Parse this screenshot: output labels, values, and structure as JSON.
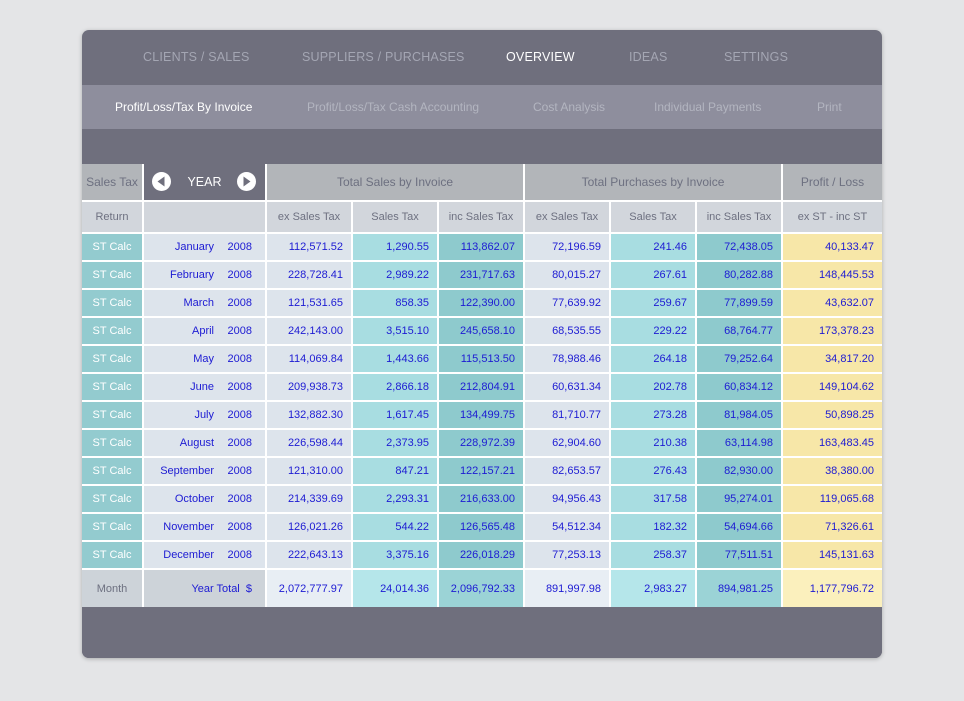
{
  "top_nav": [
    "CLIENTS / SALES",
    "SUPPLIERS / PURCHASES",
    "OVERVIEW",
    "IDEAS",
    "SETTINGS"
  ],
  "sub_nav": [
    "Profit/Loss/Tax By Invoice",
    "Profit/Loss/Tax Cash Accounting",
    "Cost Analysis",
    "Individual Payments",
    "Print"
  ],
  "table": {
    "sales_tax_header": "Sales Tax",
    "year_label": "YEAR",
    "total_sales_header": "Total Sales by Invoice",
    "total_purchases_header": "Total Purchases by Invoice",
    "profit_loss_header": "Profit / Loss",
    "return_label": "Return",
    "sub_headers": [
      "ex Sales Tax",
      "Sales Tax",
      "inc Sales Tax",
      "ex Sales Tax",
      "Sales Tax",
      "inc Sales Tax",
      "ex ST - inc ST"
    ],
    "rows": [
      {
        "action": "ST Calc",
        "month": "January",
        "year": "2008",
        "sales_ex": "112,571.52",
        "sales_tax": "1,290.55",
        "sales_inc": "113,862.07",
        "purch_ex": "72,196.59",
        "purch_tax": "241.46",
        "purch_inc": "72,438.05",
        "profit": "40,133.47"
      },
      {
        "action": "ST Calc",
        "month": "February",
        "year": "2008",
        "sales_ex": "228,728.41",
        "sales_tax": "2,989.22",
        "sales_inc": "231,717.63",
        "purch_ex": "80,015.27",
        "purch_tax": "267.61",
        "purch_inc": "80,282.88",
        "profit": "148,445.53"
      },
      {
        "action": "ST Calc",
        "month": "March",
        "year": "2008",
        "sales_ex": "121,531.65",
        "sales_tax": "858.35",
        "sales_inc": "122,390.00",
        "purch_ex": "77,639.92",
        "purch_tax": "259.67",
        "purch_inc": "77,899.59",
        "profit": "43,632.07"
      },
      {
        "action": "ST Calc",
        "month": "April",
        "year": "2008",
        "sales_ex": "242,143.00",
        "sales_tax": "3,515.10",
        "sales_inc": "245,658.10",
        "purch_ex": "68,535.55",
        "purch_tax": "229.22",
        "purch_inc": "68,764.77",
        "profit": "173,378.23"
      },
      {
        "action": "ST Calc",
        "month": "May",
        "year": "2008",
        "sales_ex": "114,069.84",
        "sales_tax": "1,443.66",
        "sales_inc": "115,513.50",
        "purch_ex": "78,988.46",
        "purch_tax": "264.18",
        "purch_inc": "79,252.64",
        "profit": "34,817.20"
      },
      {
        "action": "ST Calc",
        "month": "June",
        "year": "2008",
        "sales_ex": "209,938.73",
        "sales_tax": "2,866.18",
        "sales_inc": "212,804.91",
        "purch_ex": "60,631.34",
        "purch_tax": "202.78",
        "purch_inc": "60,834.12",
        "profit": "149,104.62"
      },
      {
        "action": "ST Calc",
        "month": "July",
        "year": "2008",
        "sales_ex": "132,882.30",
        "sales_tax": "1,617.45",
        "sales_inc": "134,499.75",
        "purch_ex": "81,710.77",
        "purch_tax": "273.28",
        "purch_inc": "81,984.05",
        "profit": "50,898.25"
      },
      {
        "action": "ST Calc",
        "month": "August",
        "year": "2008",
        "sales_ex": "226,598.44",
        "sales_tax": "2,373.95",
        "sales_inc": "228,972.39",
        "purch_ex": "62,904.60",
        "purch_tax": "210.38",
        "purch_inc": "63,114.98",
        "profit": "163,483.45"
      },
      {
        "action": "ST Calc",
        "month": "September",
        "year": "2008",
        "sales_ex": "121,310.00",
        "sales_tax": "847.21",
        "sales_inc": "122,157.21",
        "purch_ex": "82,653.57",
        "purch_tax": "276.43",
        "purch_inc": "82,930.00",
        "profit": "38,380.00"
      },
      {
        "action": "ST Calc",
        "month": "October",
        "year": "2008",
        "sales_ex": "214,339.69",
        "sales_tax": "2,293.31",
        "sales_inc": "216,633.00",
        "purch_ex": "94,956.43",
        "purch_tax": "317.58",
        "purch_inc": "95,274.01",
        "profit": "119,065.68"
      },
      {
        "action": "ST Calc",
        "month": "November",
        "year": "2008",
        "sales_ex": "126,021.26",
        "sales_tax": "544.22",
        "sales_inc": "126,565.48",
        "purch_ex": "54,512.34",
        "purch_tax": "182.32",
        "purch_inc": "54,694.66",
        "profit": "71,326.61"
      },
      {
        "action": "ST Calc",
        "month": "December",
        "year": "2008",
        "sales_ex": "222,643.13",
        "sales_tax": "3,375.16",
        "sales_inc": "226,018.29",
        "purch_ex": "77,253.13",
        "purch_tax": "258.37",
        "purch_inc": "77,511.51",
        "profit": "145,131.63"
      }
    ],
    "totals": {
      "label": "Month",
      "year_total": "Year Total  $",
      "sales_ex": "2,072,777.97",
      "sales_tax": "24,014.36",
      "sales_inc": "2,096,792.33",
      "purch_ex": "891,997.98",
      "purch_tax": "2,983.27",
      "purch_inc": "894,981.25",
      "profit": "1,177,796.72"
    }
  },
  "colors": {
    "window_bg": "#6f6f7d",
    "subnav_bg": "#8e8e9d",
    "value_text": "#1d1bd3",
    "st_calc": "#93cbcf",
    "profit_col": "#f7e7a8"
  }
}
